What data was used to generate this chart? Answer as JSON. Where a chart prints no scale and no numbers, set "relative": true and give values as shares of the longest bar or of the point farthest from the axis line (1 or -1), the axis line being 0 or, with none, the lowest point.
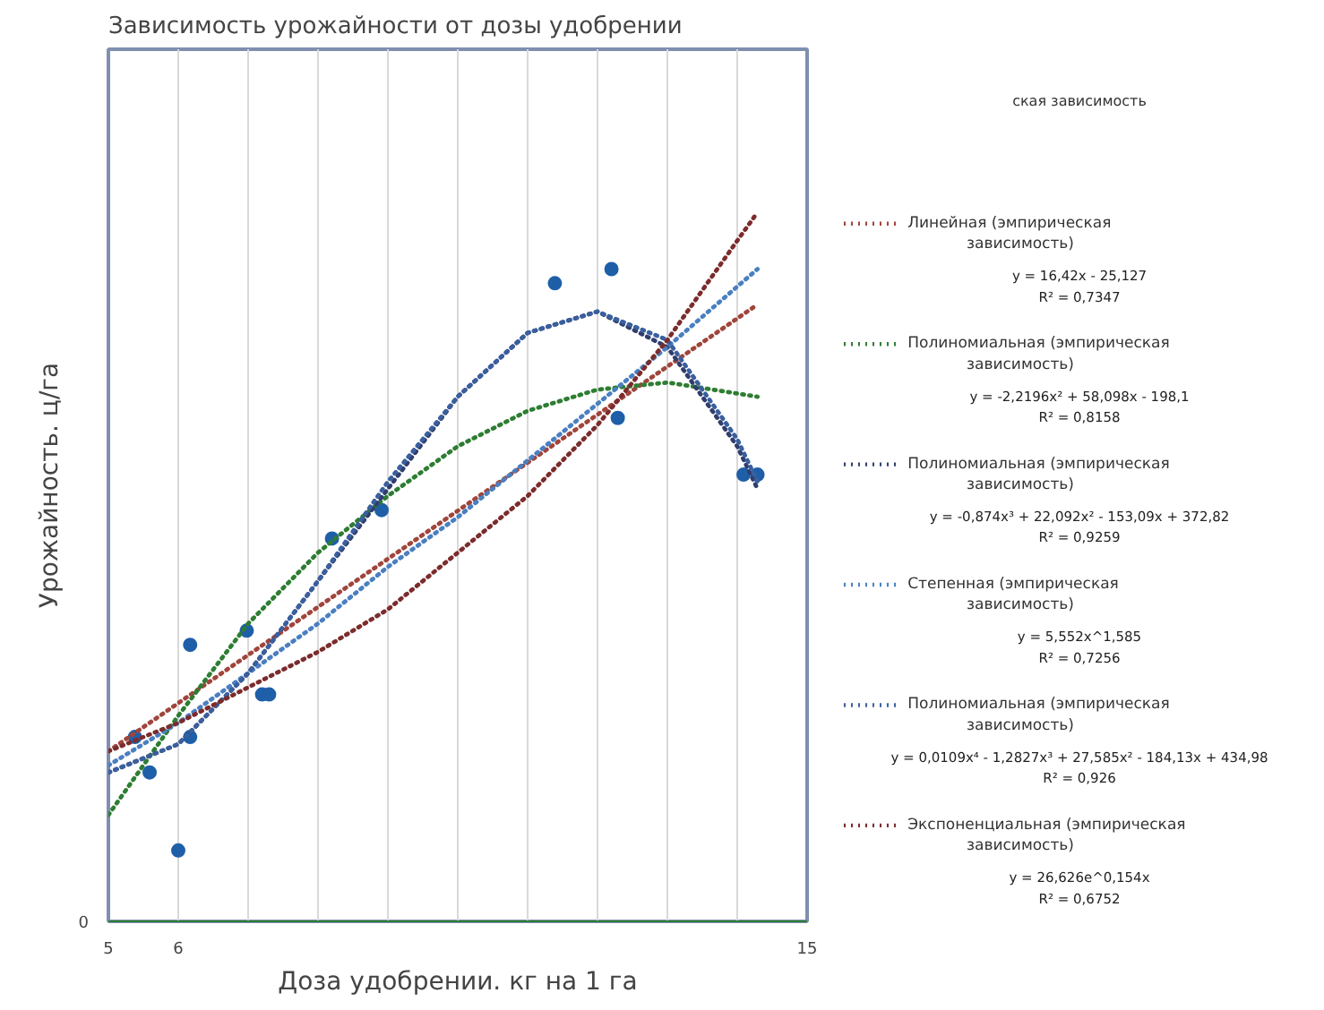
{
  "chart_data": {
    "type": "scatter",
    "title": "Зависимость урожайности от дозы удобрении",
    "xlabel": "Доза удобрении. кг на 1 га",
    "ylabel": "Урожайность. ц/га",
    "relative": true,
    "xlim": [
      5,
      15
    ],
    "xticks": [
      5,
      6,
      {
        "value": 7,
        "label": null
      },
      {
        "value": 8,
        "label": null
      },
      {
        "value": 9,
        "label": null
      },
      {
        "value": 10,
        "label": null
      },
      {
        "value": 11,
        "label": null
      },
      {
        "value": 12,
        "label": null
      },
      {
        "value": 13,
        "label": null
      },
      {
        "value": 14,
        "label": null
      },
      15
    ],
    "grid": true,
    "legend": "right",
    "line_style": "dotted",
    "annotations": [
      "ская зависимость",
      "y = 16,42x - 25,127\nR² = 0,7347",
      "y = -2,2196x² + 58,098x - 198,1\nR² = 0,8158",
      "y = -0,874x³ + 22,092x² - 153,09x + 372,82\nR² = 0,9259",
      "y = 5,552x^1,585\nR² = 0,7256",
      "y = 0,0109x⁴ - 1,2827x³ + 27,585x² - 184,13x + 434,98\nR² = 0,926",
      "y = 26,626e^0,154x\nR² = 0,6752",
      "0"
    ],
    "series": [
      {
        "marker": "circle",
        "color": "#1f5fa8",
        "x": [
          5.38,
          5.59,
          6.0,
          6.17,
          6.17,
          6.98,
          7.2,
          7.3,
          8.2,
          8.91,
          11.39,
          12.2,
          12.29,
          14.09,
          14.29
        ],
        "values": [
          0.26,
          0.21,
          0.1,
          0.39,
          0.26,
          0.41,
          0.32,
          0.32,
          0.54,
          0.58,
          0.9,
          0.92,
          0.71,
          0.63,
          0.63
        ]
      },
      {
        "type": "line",
        "name": "Линейная (эмпирическая зависимость)",
        "color": "#a0453c",
        "x": [
          5,
          14.29
        ],
        "values": [
          0.24,
          0.87
        ]
      },
      {
        "type": "line",
        "name": "Полиномиальная (эмпирическая зависимость)",
        "color": "#2e7d32",
        "x": [
          5,
          6,
          7,
          8,
          9,
          10,
          11,
          12,
          13,
          14.29
        ],
        "values": [
          0.15,
          0.29,
          0.42,
          0.52,
          0.6,
          0.67,
          0.72,
          0.75,
          0.76,
          0.74
        ]
      },
      {
        "type": "line",
        "name": "Полиномиальная (эмпирическая зависимость)",
        "color": "#2f3e6e",
        "x": [
          5,
          6,
          7,
          8,
          9,
          10,
          11,
          12,
          13,
          14,
          14.29
        ],
        "values": [
          0.21,
          0.25,
          0.35,
          0.48,
          0.61,
          0.74,
          0.83,
          0.86,
          0.81,
          0.67,
          0.61
        ]
      },
      {
        "type": "line",
        "name": "Степенная (эмпирическая зависимость)",
        "color": "#4a7fc1",
        "x": [
          5,
          6,
          7,
          8,
          9,
          10,
          11,
          12,
          13,
          14.29
        ],
        "values": [
          0.22,
          0.28,
          0.35,
          0.42,
          0.5,
          0.57,
          0.65,
          0.73,
          0.81,
          0.92
        ]
      },
      {
        "type": "line",
        "name": "Полиномиальная (эмпирическая зависимость)",
        "color": "#3a5f9e",
        "x": [
          5,
          6,
          7,
          8,
          9,
          10,
          11,
          12,
          13,
          14,
          14.29
        ],
        "values": [
          0.21,
          0.25,
          0.35,
          0.48,
          0.62,
          0.74,
          0.83,
          0.86,
          0.82,
          0.68,
          0.62
        ]
      },
      {
        "type": "line",
        "name": "Экспоненциальная (эмпирическая зависимость)",
        "color": "#7b2c2c",
        "x": [
          5,
          6,
          7,
          8,
          9,
          10,
          11,
          12,
          13,
          14,
          14.29
        ],
        "values": [
          0.24,
          0.28,
          0.33,
          0.38,
          0.44,
          0.52,
          0.6,
          0.7,
          0.82,
          0.96,
          1.0
        ]
      }
    ]
  }
}
